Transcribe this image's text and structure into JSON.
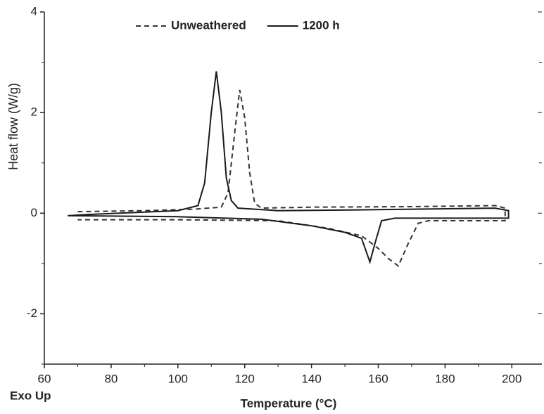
{
  "chart_data": {
    "type": "line",
    "x_label": "Temperature (°C)",
    "y_label": "Heat flow (W/g)",
    "annotation": "Exo Up",
    "xlim": [
      60,
      209
    ],
    "ylim": [
      -3,
      4
    ],
    "xticks": [
      60,
      80,
      100,
      120,
      140,
      160,
      180,
      200
    ],
    "xminor": [
      70,
      90,
      110,
      130,
      150,
      170,
      190
    ],
    "yticks": [
      -2,
      0,
      2,
      4
    ],
    "yminor": [
      -3,
      -1,
      1,
      3
    ],
    "legend": "top",
    "series": [
      {
        "name": "Unweathered",
        "color": "#333333",
        "dash": true,
        "x": [
          70,
          90,
          105,
          113,
          115,
          117,
          118.5,
          120,
          121.5,
          123,
          125,
          140,
          170,
          195,
          198,
          198,
          185,
          175,
          172,
          169,
          166,
          163,
          160,
          155,
          145,
          130,
          100,
          70
        ],
        "values": [
          0.03,
          0.05,
          0.08,
          0.12,
          0.4,
          1.6,
          2.45,
          1.9,
          0.8,
          0.2,
          0.1,
          0.12,
          0.13,
          0.15,
          0.1,
          -0.15,
          -0.15,
          -0.15,
          -0.2,
          -0.6,
          -1.05,
          -0.9,
          -0.7,
          -0.45,
          -0.3,
          -0.15,
          -0.13,
          -0.13
        ]
      },
      {
        "name": "1200 h",
        "color": "#1a1a1a",
        "dash": false,
        "x": [
          67,
          75,
          100,
          106,
          108,
          110,
          111.5,
          113,
          114.5,
          116,
          118,
          130,
          160,
          195,
          199,
          199,
          180,
          165,
          161,
          159,
          157.5,
          155,
          150,
          140,
          125,
          100,
          67
        ],
        "values": [
          -0.05,
          -0.02,
          0.05,
          0.15,
          0.6,
          2.0,
          2.82,
          2.0,
          0.7,
          0.25,
          0.1,
          0.05,
          0.07,
          0.1,
          0.05,
          -0.1,
          -0.1,
          -0.1,
          -0.15,
          -0.6,
          -0.97,
          -0.5,
          -0.38,
          -0.25,
          -0.12,
          -0.07,
          -0.05
        ]
      }
    ]
  }
}
